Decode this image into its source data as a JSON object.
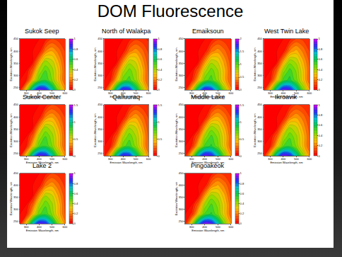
{
  "title": "DOM Fluorescence",
  "chart_data": [
    {
      "type": "contour",
      "title": "Sukok Seep",
      "xlabel": "Emission Wavelength, nm",
      "ylabel": "Excitation Wavelength, nm",
      "x": [
        250,
        300,
        350,
        400,
        450,
        500,
        550,
        600
      ],
      "y": [
        240,
        280,
        320,
        360,
        400,
        450
      ],
      "z": [
        [
          0.05,
          0.35,
          0.75,
          0.95,
          0.9,
          0.7,
          0.45,
          0.25
        ],
        [
          0,
          0.05,
          0.3,
          0.5,
          0.55,
          0.45,
          0.3,
          0.15
        ],
        [
          0,
          0,
          0.15,
          0.4,
          0.5,
          0.42,
          0.3,
          0.15
        ],
        [
          0,
          0,
          0,
          0.22,
          0.4,
          0.36,
          0.25,
          0.13
        ],
        [
          0,
          0,
          0,
          0.02,
          0.2,
          0.25,
          0.18,
          0.1
        ],
        [
          0,
          0,
          0,
          0,
          0.03,
          0.1,
          0.08,
          0.05
        ]
      ],
      "xlim": [
        250,
        600
      ],
      "xticks": [
        300,
        400,
        500,
        600
      ],
      "ylim": [
        240,
        450
      ],
      "yticks": [
        250,
        300,
        350,
        400,
        450
      ],
      "zlim": [
        0,
        1
      ],
      "zticks": [
        0,
        0.2,
        0.4,
        0.6,
        0.8,
        1
      ]
    },
    {
      "type": "contour",
      "title": "North of Walakpa",
      "xlabel": "Emission Wavelength, nm",
      "ylabel": "Excitation Wavelength, nm",
      "x": [
        250,
        300,
        350,
        400,
        450,
        500,
        550,
        600
      ],
      "y": [
        240,
        280,
        320,
        360,
        400,
        450
      ],
      "z": [
        [
          0.04,
          0.3,
          0.7,
          0.92,
          0.88,
          0.66,
          0.42,
          0.22
        ],
        [
          0,
          0.05,
          0.28,
          0.48,
          0.52,
          0.43,
          0.28,
          0.14
        ],
        [
          0,
          0,
          0.14,
          0.38,
          0.47,
          0.4,
          0.28,
          0.14
        ],
        [
          0,
          0,
          0,
          0.2,
          0.37,
          0.34,
          0.23,
          0.12
        ],
        [
          0,
          0,
          0,
          0.02,
          0.18,
          0.23,
          0.17,
          0.09
        ],
        [
          0,
          0,
          0,
          0,
          0.03,
          0.09,
          0.07,
          0.04
        ]
      ],
      "xlim": [
        250,
        600
      ],
      "xticks": [
        300,
        400,
        500,
        600
      ],
      "ylim": [
        240,
        450
      ],
      "yticks": [
        250,
        300,
        350,
        400,
        450
      ],
      "zlim": [
        0,
        1
      ],
      "zticks": [
        0,
        0.2,
        0.4,
        0.6,
        0.8,
        1
      ]
    },
    {
      "type": "contour",
      "title": "Emaiksoun",
      "xlabel": "Emission Wavelength, nm",
      "ylabel": "Excitation Wavelength, nm",
      "x": [
        250,
        300,
        350,
        400,
        450,
        500,
        550,
        600
      ],
      "y": [
        240,
        280,
        320,
        360,
        400,
        450
      ],
      "z": [
        [
          0.1,
          0.6,
          1.4,
          1.85,
          1.75,
          1.35,
          0.85,
          0.45
        ],
        [
          0,
          0.1,
          0.55,
          0.95,
          1.05,
          0.85,
          0.55,
          0.28
        ],
        [
          0,
          0,
          0.28,
          0.75,
          0.95,
          0.8,
          0.55,
          0.28
        ],
        [
          0,
          0,
          0,
          0.4,
          0.75,
          0.68,
          0.46,
          0.24
        ],
        [
          0,
          0,
          0,
          0.04,
          0.36,
          0.46,
          0.33,
          0.18
        ],
        [
          0,
          0,
          0,
          0,
          0.05,
          0.18,
          0.15,
          0.09
        ]
      ],
      "xlim": [
        250,
        600
      ],
      "xticks": [
        300,
        400,
        500,
        600
      ],
      "ylim": [
        240,
        450
      ],
      "yticks": [
        250,
        300,
        350,
        400,
        450
      ],
      "zlim": [
        0,
        2
      ],
      "zticks": [
        0,
        0.5,
        1,
        1.5,
        2
      ]
    },
    {
      "type": "contour",
      "title": "West Twin Lake",
      "xlabel": "Emission Wavelength, nm",
      "ylabel": "Excitation Wavelength, nm",
      "x": [
        250,
        300,
        350,
        400,
        450,
        500,
        550,
        600
      ],
      "y": [
        240,
        280,
        320,
        360,
        400,
        450
      ],
      "z": [
        [
          0.05,
          0.33,
          0.72,
          0.94,
          0.91,
          0.72,
          0.47,
          0.26
        ],
        [
          0,
          0.05,
          0.3,
          0.52,
          0.57,
          0.47,
          0.32,
          0.16
        ],
        [
          0,
          0,
          0.16,
          0.42,
          0.52,
          0.44,
          0.31,
          0.16
        ],
        [
          0,
          0,
          0,
          0.23,
          0.42,
          0.38,
          0.26,
          0.14
        ],
        [
          0,
          0,
          0,
          0.02,
          0.21,
          0.27,
          0.19,
          0.1
        ],
        [
          0,
          0,
          0,
          0,
          0.03,
          0.11,
          0.09,
          0.05
        ]
      ],
      "xlim": [
        250,
        600
      ],
      "xticks": [
        300,
        400,
        500,
        600
      ],
      "ylim": [
        240,
        450
      ],
      "yticks": [
        250,
        300,
        350,
        400,
        450
      ],
      "zlim": [
        0,
        1
      ],
      "zticks": [
        0,
        0.2,
        0.4,
        0.6,
        0.8,
        1
      ]
    },
    {
      "type": "contour",
      "title": "Sukok Center",
      "xlabel": "Emission Wavelength, nm",
      "ylabel": "Excitation Wavelength, nm",
      "x": [
        250,
        300,
        350,
        400,
        450,
        500,
        550,
        600
      ],
      "y": [
        240,
        280,
        320,
        360,
        400,
        450
      ],
      "z": [
        [
          0.07,
          0.5,
          1.1,
          1.4,
          1.35,
          1.05,
          0.68,
          0.36
        ],
        [
          0,
          0.07,
          0.45,
          0.75,
          0.82,
          0.68,
          0.45,
          0.22
        ],
        [
          0,
          0,
          0.22,
          0.6,
          0.75,
          0.63,
          0.45,
          0.22
        ],
        [
          0,
          0,
          0,
          0.33,
          0.6,
          0.54,
          0.37,
          0.19
        ],
        [
          0,
          0,
          0,
          0.03,
          0.3,
          0.37,
          0.27,
          0.15
        ],
        [
          0,
          0,
          0,
          0,
          0.04,
          0.15,
          0.12,
          0.07
        ]
      ],
      "xlim": [
        250,
        600
      ],
      "xticks": [
        300,
        400,
        500,
        600
      ],
      "ylim": [
        240,
        450
      ],
      "yticks": [
        250,
        300,
        350,
        400,
        450
      ],
      "zlim": [
        0,
        1.5
      ],
      "zticks": [
        0,
        0.5,
        1,
        1.5
      ]
    },
    {
      "type": "contour",
      "title": "Qalluuraq",
      "xlabel": "Emission Wavelength, nm",
      "ylabel": "Excitation Wavelength, nm",
      "x": [
        250,
        300,
        350,
        400,
        450,
        500,
        550,
        600
      ],
      "y": [
        240,
        280,
        320,
        360,
        400,
        450
      ],
      "z": [
        [
          0.06,
          0.48,
          1.05,
          1.38,
          1.32,
          1.0,
          0.65,
          0.34
        ],
        [
          0,
          0.07,
          0.42,
          0.72,
          0.8,
          0.65,
          0.43,
          0.21
        ],
        [
          0,
          0,
          0.2,
          0.58,
          0.72,
          0.6,
          0.43,
          0.21
        ],
        [
          0,
          0,
          0,
          0.31,
          0.58,
          0.52,
          0.35,
          0.18
        ],
        [
          0,
          0,
          0,
          0.03,
          0.28,
          0.36,
          0.26,
          0.14
        ],
        [
          0,
          0,
          0,
          0,
          0.04,
          0.14,
          0.11,
          0.07
        ]
      ],
      "xlim": [
        250,
        600
      ],
      "xticks": [
        300,
        400,
        500,
        600
      ],
      "ylim": [
        240,
        450
      ],
      "yticks": [
        250,
        300,
        350,
        400,
        450
      ],
      "zlim": [
        0,
        1.5
      ],
      "zticks": [
        0,
        0.5,
        1,
        1.5
      ]
    },
    {
      "type": "contour",
      "title": "Middle Lake",
      "xlabel": "Emission Wavelength, nm",
      "ylabel": "Excitation Wavelength, nm",
      "x": [
        250,
        300,
        350,
        400,
        450,
        500,
        550,
        600
      ],
      "y": [
        240,
        280,
        320,
        360,
        400,
        450
      ],
      "z": [
        [
          0.07,
          0.52,
          1.12,
          1.42,
          1.36,
          1.06,
          0.7,
          0.37
        ],
        [
          0,
          0.08,
          0.46,
          0.77,
          0.84,
          0.7,
          0.46,
          0.23
        ],
        [
          0,
          0,
          0.23,
          0.62,
          0.77,
          0.65,
          0.46,
          0.23
        ],
        [
          0,
          0,
          0,
          0.34,
          0.62,
          0.56,
          0.38,
          0.2
        ],
        [
          0,
          0,
          0,
          0.03,
          0.31,
          0.38,
          0.28,
          0.15
        ],
        [
          0,
          0,
          0,
          0,
          0.05,
          0.16,
          0.12,
          0.08
        ]
      ],
      "xlim": [
        250,
        600
      ],
      "xticks": [
        300,
        400,
        500,
        600
      ],
      "ylim": [
        240,
        450
      ],
      "yticks": [
        250,
        300,
        350,
        400,
        450
      ],
      "zlim": [
        0,
        1.5
      ],
      "zticks": [
        0,
        0.5,
        1,
        1.5
      ]
    },
    {
      "type": "contour",
      "title": "Ikroavik",
      "xlabel": "Emission Wavelength, nm",
      "ylabel": "Excitation Wavelength, nm",
      "x": [
        250,
        300,
        350,
        400,
        450,
        500,
        550,
        600
      ],
      "y": [
        240,
        280,
        320,
        360,
        400,
        450
      ],
      "z": [
        [
          0.05,
          0.34,
          0.74,
          0.96,
          0.9,
          0.69,
          0.44,
          0.24
        ],
        [
          0,
          0.05,
          0.3,
          0.5,
          0.54,
          0.44,
          0.29,
          0.15
        ],
        [
          0,
          0,
          0.15,
          0.39,
          0.49,
          0.41,
          0.29,
          0.15
        ],
        [
          0,
          0,
          0,
          0.21,
          0.39,
          0.35,
          0.24,
          0.13
        ],
        [
          0,
          0,
          0,
          0.02,
          0.19,
          0.24,
          0.18,
          0.1
        ],
        [
          0,
          0,
          0,
          0,
          0.03,
          0.1,
          0.08,
          0.05
        ]
      ],
      "xlim": [
        250,
        600
      ],
      "xticks": [
        300,
        400,
        500,
        600
      ],
      "ylim": [
        240,
        450
      ],
      "yticks": [
        250,
        300,
        350,
        400,
        450
      ],
      "zlim": [
        0,
        1
      ],
      "zticks": [
        0,
        0.2,
        0.4,
        0.6,
        0.8,
        1
      ]
    },
    {
      "type": "contour",
      "title": "Lake 2",
      "xlabel": "Emission Wavelength, nm",
      "ylabel": "Excitation Wavelength, nm",
      "x": [
        250,
        300,
        350,
        400,
        450,
        500,
        550,
        600
      ],
      "y": [
        240,
        280,
        320,
        360,
        400,
        450
      ],
      "z": [
        [
          0.04,
          0.32,
          0.71,
          0.93,
          0.89,
          0.68,
          0.43,
          0.23
        ],
        [
          0,
          0.05,
          0.29,
          0.49,
          0.54,
          0.44,
          0.29,
          0.15
        ],
        [
          0,
          0,
          0.15,
          0.39,
          0.49,
          0.41,
          0.29,
          0.14
        ],
        [
          0,
          0,
          0,
          0.21,
          0.39,
          0.35,
          0.24,
          0.12
        ],
        [
          0,
          0,
          0,
          0.02,
          0.19,
          0.24,
          0.17,
          0.09
        ],
        [
          0,
          0,
          0,
          0,
          0.03,
          0.1,
          0.08,
          0.05
        ]
      ],
      "xlim": [
        250,
        600
      ],
      "xticks": [
        300,
        400,
        500,
        600
      ],
      "ylim": [
        240,
        450
      ],
      "yticks": [
        250,
        300,
        350,
        400,
        450
      ],
      "zlim": [
        0,
        1
      ],
      "zticks": [
        0,
        0.2,
        0.4,
        0.6,
        0.8,
        1
      ]
    },
    {
      "type": "contour",
      "title": "Pingoakeok",
      "xlabel": "Emission Wavelength, nm",
      "ylabel": "Excitation Wavelength, nm",
      "x": [
        250,
        300,
        350,
        400,
        450,
        500,
        550,
        600
      ],
      "y": [
        240,
        280,
        320,
        360,
        400,
        450
      ],
      "z": [
        [
          0.05,
          0.36,
          0.76,
          0.96,
          0.92,
          0.71,
          0.46,
          0.25
        ],
        [
          0,
          0.06,
          0.31,
          0.51,
          0.56,
          0.46,
          0.31,
          0.16
        ],
        [
          0,
          0,
          0.16,
          0.41,
          0.51,
          0.43,
          0.31,
          0.16
        ],
        [
          0,
          0,
          0,
          0.22,
          0.41,
          0.37,
          0.26,
          0.13
        ],
        [
          0,
          0,
          0,
          0.02,
          0.2,
          0.26,
          0.19,
          0.1
        ],
        [
          0,
          0,
          0,
          0,
          0.03,
          0.1,
          0.08,
          0.05
        ]
      ],
      "xlim": [
        250,
        600
      ],
      "xticks": [
        300,
        400,
        500,
        600
      ],
      "ylim": [
        240,
        450
      ],
      "yticks": [
        250,
        300,
        350,
        400,
        450
      ],
      "zlim": [
        0,
        1
      ],
      "zticks": [
        0,
        0.2,
        0.4,
        0.6,
        0.8,
        1
      ]
    }
  ]
}
